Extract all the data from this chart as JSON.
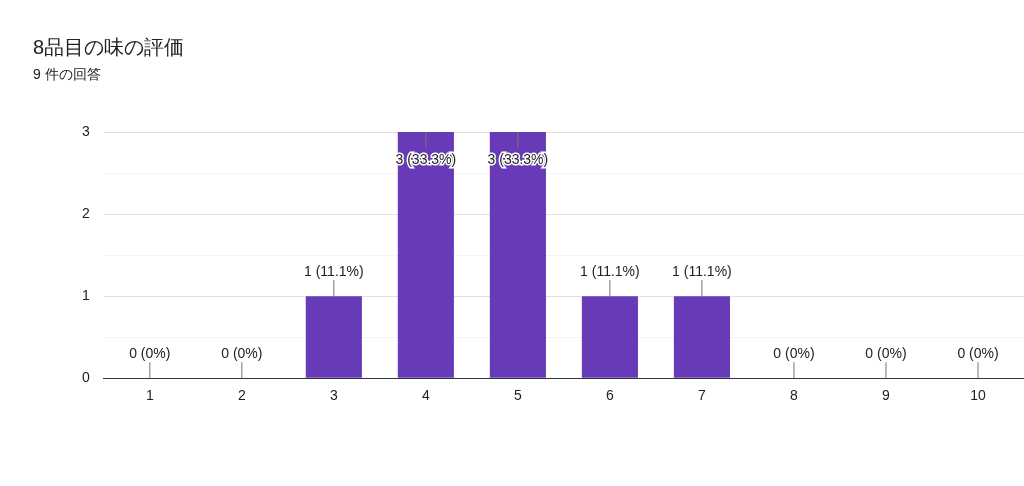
{
  "chart_data": {
    "type": "bar",
    "title": "8品目の味の評価",
    "subtitle": "9 件の回答",
    "categories": [
      "1",
      "2",
      "3",
      "4",
      "5",
      "6",
      "7",
      "8",
      "9",
      "10"
    ],
    "values": [
      0,
      0,
      1,
      3,
      3,
      1,
      1,
      0,
      0,
      0
    ],
    "value_labels": [
      "0 (0%)",
      "0 (0%)",
      "1 (11.1%)",
      "3 (33.3%)",
      "3 (33.3%)",
      "1 (11.1%)",
      "1 (11.1%)",
      "0 (0%)",
      "0 (0%)",
      "0 (0%)"
    ],
    "color": "#673ab7",
    "ylim": [
      0,
      3
    ],
    "yticks": [
      0,
      {
        "value": 0.5,
        "label": null
      },
      1,
      {
        "value": 1.5,
        "label": null
      },
      2,
      {
        "value": 2.5,
        "label": null
      },
      3
    ],
    "grid": "y"
  }
}
